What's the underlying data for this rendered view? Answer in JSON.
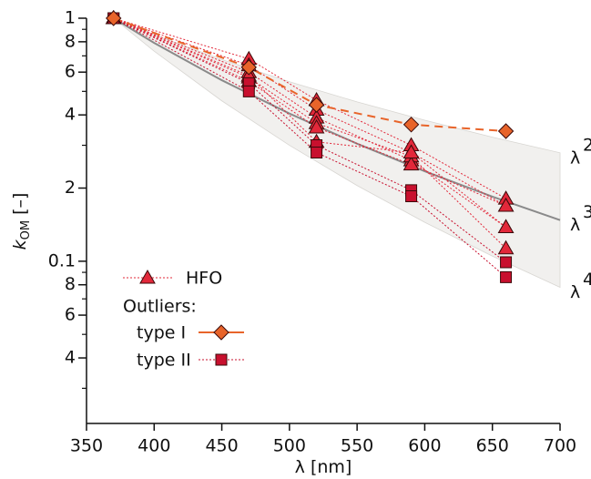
{
  "chart_data": {
    "type": "line",
    "log_y": true,
    "xlabel": {
      "base": "λ",
      "unit": "[nm]"
    },
    "ylabel": {
      "base": "k",
      "sub": "OM",
      "unit": "[–]"
    },
    "xlim": [
      350,
      700
    ],
    "xticks": [
      350,
      400,
      450,
      500,
      550,
      600,
      650,
      700
    ],
    "ylim": [
      0.0215,
      1
    ],
    "yticks": [
      1,
      {
        "value": 0.8,
        "label": "8"
      },
      {
        "value": 0.6,
        "label": "6"
      },
      {
        "value": 0.4,
        "label": "4"
      },
      {
        "value": 0.2,
        "label": "2"
      },
      0.1,
      {
        "value": 0.08,
        "label": "8"
      },
      {
        "value": 0.06,
        "label": "6"
      },
      {
        "value": 0.04,
        "label": "4"
      }
    ],
    "yticks_minor": [
      0.9,
      0.7,
      0.5,
      0.3,
      0.09,
      0.07,
      0.05,
      0.03
    ],
    "x": [
      370,
      470,
      520,
      590,
      660
    ],
    "hfo": {
      "name": "HFO",
      "color": "#e2283a",
      "series": [
        [
          1,
          0.68,
          0.46,
          0.3,
          0.181
        ],
        [
          1,
          0.64,
          0.42,
          0.28,
          0.169
        ],
        [
          1,
          0.6,
          0.39,
          0.26,
          0.138
        ],
        [
          1,
          0.57,
          0.37,
          0.27,
          0.113
        ],
        [
          1,
          0.55,
          0.355,
          0.25,
          0.169
        ],
        [
          1,
          0.58,
          0.31,
          0.28,
          0.138
        ]
      ]
    },
    "outliers_label": "Outliers:",
    "type_1": {
      "name": "type I",
      "color": "#e8642a",
      "values": [
        1,
        0.628,
        0.44,
        0.365,
        0.343
      ]
    },
    "type_2": {
      "name": "type II",
      "color": "#c8102e",
      "series": [
        [
          1,
          0.54,
          0.3,
          0.196,
          0.099
        ],
        [
          1,
          0.5,
          0.28,
          0.185,
          0.086
        ]
      ]
    },
    "reference": {
      "x": [
        370,
        400,
        450,
        500,
        550,
        600,
        650,
        700
      ],
      "band_color": "#f1f0ee",
      "line_color": "#8a8a8a",
      "curves": [
        {
          "label": "λ",
          "exponent": "2",
          "values": [
            1,
            0.8556,
            0.676,
            0.5476,
            0.4526,
            0.3803,
            0.324,
            0.2794
          ]
        },
        {
          "label": "λ",
          "exponent": "3",
          "values": [
            1,
            0.7915,
            0.5558,
            0.4052,
            0.3045,
            0.2345,
            0.1844,
            0.1477
          ]
        },
        {
          "label": "λ",
          "exponent": "4",
          "values": [
            1,
            0.7321,
            0.457,
            0.2999,
            0.2048,
            0.1446,
            0.105,
            0.0781
          ]
        }
      ]
    }
  }
}
